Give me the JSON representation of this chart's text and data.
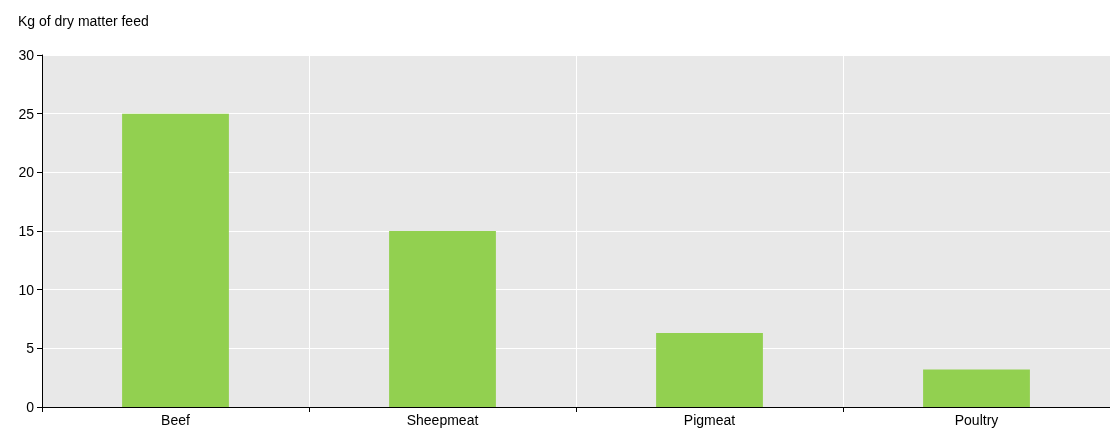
{
  "chart_data": {
    "type": "bar",
    "ylabel": "Kg of dry matter feed",
    "categories": [
      "Beef",
      "Sheepmeat",
      "Pigmeat",
      "Poultry"
    ],
    "values": [
      25,
      15,
      6.3,
      3.2
    ],
    "color": "#92d050",
    "ylim": [
      0,
      30
    ],
    "yticks": [
      0,
      5,
      10,
      15,
      20,
      25,
      30
    ],
    "grid": true
  }
}
